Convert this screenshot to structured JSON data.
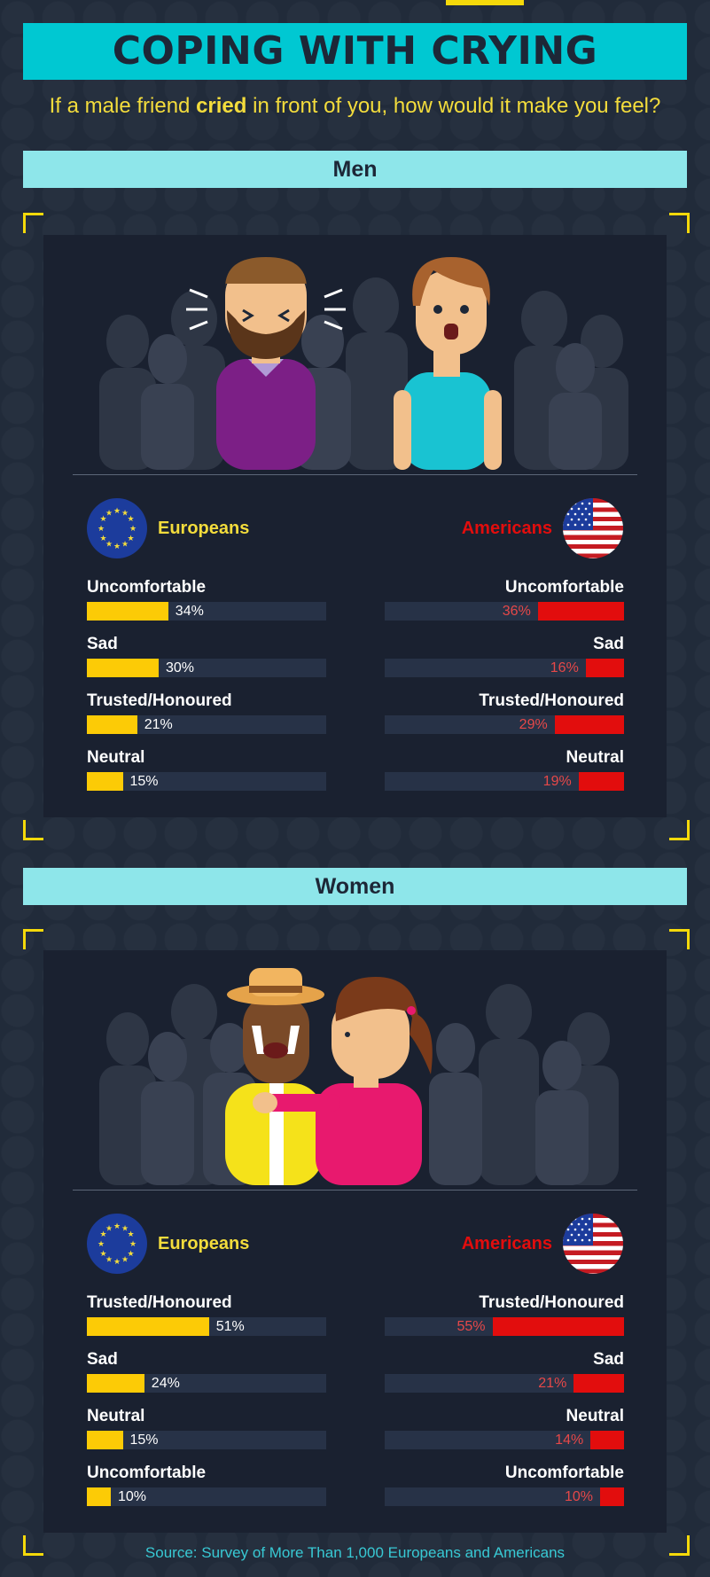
{
  "title": "COPING WITH CRYING",
  "subtitle": {
    "before": "If a male friend ",
    "highlight": "cried",
    "after": " in front of you, how would it make you feel?"
  },
  "source": "Source: Survey of More Than 1,000 Europeans and Americans",
  "colors": {
    "europeans": "#fccb06",
    "americans": "#e20d0d",
    "banner": "#00c8d2",
    "section_banner": "#8ee6ea",
    "background": "#212b3a"
  },
  "icons": [
    "eu-flag-icon",
    "us-flag-icon"
  ],
  "chart_data": [
    {
      "type": "bar",
      "title": "Men",
      "series": [
        {
          "name": "Europeans",
          "categories": [
            "Uncomfortable",
            "Sad",
            "Trusted/Honoured",
            "Neutral"
          ],
          "values": [
            34,
            30,
            21,
            15
          ],
          "labels": [
            "34%",
            "30%",
            "21%",
            "15%"
          ]
        },
        {
          "name": "Americans",
          "categories": [
            "Uncomfortable",
            "Sad",
            "Trusted/Honoured",
            "Neutral"
          ],
          "values": [
            36,
            16,
            29,
            19
          ],
          "labels": [
            "36%",
            "16%",
            "29%",
            "19%"
          ]
        }
      ],
      "unit": "%",
      "ylim": [
        0,
        100
      ]
    },
    {
      "type": "bar",
      "title": "Women",
      "series": [
        {
          "name": "Europeans",
          "categories": [
            "Trusted/Honoured",
            "Sad",
            "Neutral",
            "Uncomfortable"
          ],
          "values": [
            51,
            24,
            15,
            10
          ],
          "labels": [
            "51%",
            "24%",
            "15%",
            "10%"
          ]
        },
        {
          "name": "Americans",
          "categories": [
            "Trusted/Honoured",
            "Sad",
            "Neutral",
            "Uncomfortable"
          ],
          "values": [
            55,
            21,
            14,
            10
          ],
          "labels": [
            "55%",
            "21%",
            "14%",
            "10%"
          ]
        }
      ],
      "unit": "%",
      "ylim": [
        0,
        100
      ]
    }
  ]
}
